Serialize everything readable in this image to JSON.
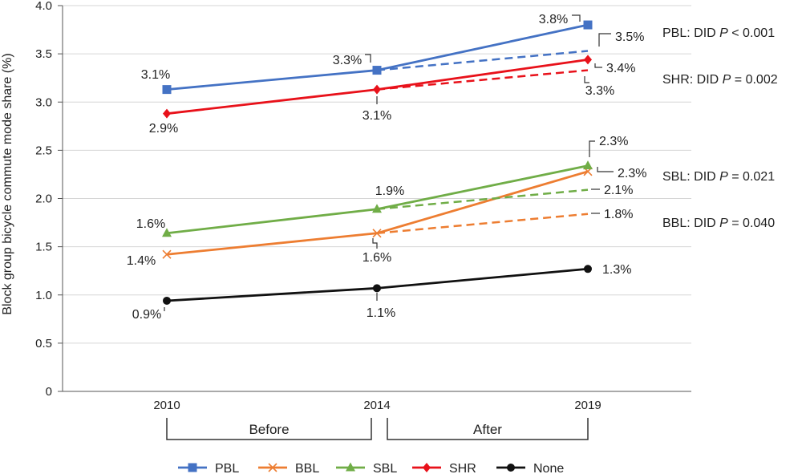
{
  "chart_data": {
    "type": "line",
    "title": "",
    "xlabel": "",
    "ylabel": "Block group bicycle commute mode share (%)",
    "ylim": [
      0,
      4.0
    ],
    "yticks": [
      "0",
      "0.5",
      "1.0",
      "1.5",
      "2.0",
      "2.5",
      "3.0",
      "3.5",
      "4.0"
    ],
    "x": [
      "2010",
      "2014",
      "2019"
    ],
    "periods": [
      {
        "label": "Before",
        "from": "2010",
        "to": "2014"
      },
      {
        "label": "After",
        "from": "2014",
        "to": "2019"
      }
    ],
    "series": [
      {
        "name": "PBL",
        "color": "#4472C4",
        "marker": "square",
        "values": [
          3.13,
          3.33,
          3.8
        ],
        "labels": [
          "3.1%",
          "3.3%",
          "3.8%"
        ],
        "counterfactual": {
          "value": 3.53,
          "label": "3.5%"
        }
      },
      {
        "name": "BBL",
        "color": "#ED7D31",
        "marker": "x",
        "values": [
          1.42,
          1.64,
          2.28
        ],
        "labels": [
          "1.4%",
          "1.6%",
          "2.3%"
        ],
        "counterfactual": {
          "value": 1.84,
          "label": "1.8%"
        }
      },
      {
        "name": "SBL",
        "color": "#70AD47",
        "marker": "triangle",
        "values": [
          1.64,
          1.89,
          2.34
        ],
        "labels": [
          "1.6%",
          "1.9%",
          "2.3%"
        ],
        "counterfactual": {
          "value": 2.09,
          "label": "2.1%"
        }
      },
      {
        "name": "SHR",
        "color": "#E8111A",
        "marker": "diamond",
        "values": [
          2.88,
          3.13,
          3.44
        ],
        "labels": [
          "2.9%",
          "3.1%",
          "3.4%"
        ],
        "counterfactual": {
          "value": 3.33,
          "label": "3.3%"
        }
      },
      {
        "name": "None",
        "color": "#111111",
        "marker": "circle",
        "values": [
          0.94,
          1.07,
          1.27
        ],
        "labels": [
          "0.9%",
          "1.1%",
          "1.3%"
        ]
      }
    ],
    "annotations": [
      {
        "series": "PBL",
        "text": "PBL: DID ",
        "italic": "P",
        "rest": " < 0.001"
      },
      {
        "series": "SHR",
        "text": "SHR: DID ",
        "italic": "P",
        "rest": " = 0.002"
      },
      {
        "series": "SBL",
        "text": "SBL: DID ",
        "italic": "P",
        "rest": " = 0.021"
      },
      {
        "series": "BBL",
        "text": "BBL: DID ",
        "italic": "P",
        "rest": " = 0.040"
      }
    ],
    "legend": [
      "PBL",
      "BBL",
      "SBL",
      "SHR",
      "None"
    ],
    "legend_position": "bottom",
    "grid": "horizontal"
  }
}
